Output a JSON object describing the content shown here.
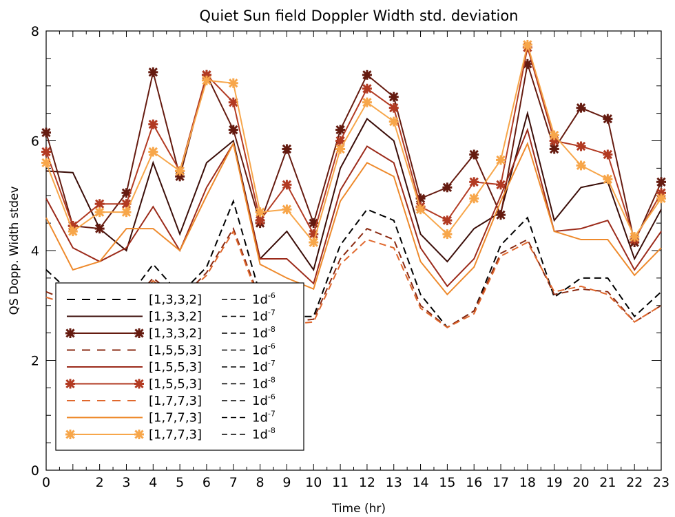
{
  "chart_data": {
    "type": "line",
    "title": "Quiet Sun field Doppler Width std. deviation",
    "xlabel": "Time (hr)",
    "ylabel": "QS Dopp. Width stdev",
    "xlim": [
      0,
      23
    ],
    "ylim": [
      0,
      8
    ],
    "x_ticks": [
      "0",
      "2",
      "3",
      "4",
      "5",
      "6",
      "7",
      "8",
      "9",
      "10",
      "11",
      "12",
      "13",
      "14",
      "15",
      "16",
      "17",
      "18",
      "19",
      "20",
      "21",
      "22",
      "23"
    ],
    "y_ticks": [
      "0",
      "2",
      "4",
      "6",
      "8"
    ],
    "grid": false,
    "legend_position": "bottom-left",
    "x": [
      0,
      1,
      2,
      3,
      4,
      5,
      6,
      7,
      8,
      9,
      10,
      11,
      12,
      13,
      14,
      15,
      16,
      17,
      18,
      19,
      20,
      21,
      22,
      23
    ],
    "series": [
      {
        "name": "[1,3,3,2] --- 1d-6",
        "label_main": "[1,3,3,2]",
        "tol_base": "1d",
        "tol_exp": "-6",
        "color": "#000000",
        "style": "dashed",
        "marker": "none",
        "values": [
          3.65,
          3.2,
          2.9,
          3.1,
          3.75,
          3.2,
          3.7,
          4.9,
          3.2,
          2.8,
          2.8,
          4.1,
          4.75,
          4.55,
          3.2,
          2.6,
          2.9,
          4.1,
          4.6,
          3.15,
          3.5,
          3.5,
          2.8,
          3.25
        ]
      },
      {
        "name": "[1,3,3,2] --- 1d-7",
        "label_main": "[1,3,3,2]",
        "tol_base": "1d",
        "tol_exp": "-7",
        "color": "#3a0d08",
        "style": "solid",
        "marker": "none",
        "values": [
          5.45,
          5.42,
          4.4,
          4.0,
          5.6,
          4.3,
          5.6,
          6.0,
          3.85,
          4.35,
          3.65,
          5.5,
          6.4,
          6.0,
          4.3,
          3.8,
          4.4,
          4.7,
          6.5,
          4.55,
          5.15,
          5.25,
          3.85,
          4.75
        ]
      },
      {
        "name": "[1,3,3,2] --- 1d-8",
        "label_main": "[1,3,3,2]",
        "tol_base": "1d",
        "tol_exp": "-8",
        "color": "#651b10",
        "style": "solid",
        "marker": "star",
        "values": [
          6.15,
          4.45,
          4.4,
          5.05,
          7.25,
          5.35,
          7.2,
          6.2,
          4.5,
          5.85,
          4.5,
          6.2,
          7.2,
          6.8,
          4.95,
          5.15,
          5.75,
          4.65,
          7.4,
          5.85,
          6.6,
          6.4,
          4.15,
          5.25
        ]
      },
      {
        "name": "[1,5,5,3] --- 1d-6",
        "label_main": "[1,5,5,3]",
        "tol_base": "1d",
        "tol_exp": "-6",
        "color": "#8a2a12",
        "style": "dashed",
        "marker": "none",
        "values": [
          3.25,
          3.05,
          2.75,
          2.95,
          3.5,
          3.1,
          3.6,
          4.4,
          3.1,
          2.7,
          2.75,
          3.85,
          4.4,
          4.2,
          3.0,
          2.6,
          2.9,
          3.95,
          4.2,
          3.2,
          3.3,
          3.25,
          2.7,
          3.0
        ]
      },
      {
        "name": "[1,5,5,3] --- 1d-7",
        "label_main": "[1,5,5,3]",
        "tol_base": "1d",
        "tol_exp": "-7",
        "color": "#9b2a1a",
        "style": "solid",
        "marker": "none",
        "values": [
          4.95,
          4.05,
          3.8,
          4.05,
          4.8,
          4.0,
          5.15,
          5.95,
          3.85,
          3.85,
          3.4,
          5.1,
          5.9,
          5.6,
          4.05,
          3.35,
          3.85,
          5.0,
          6.2,
          4.35,
          4.4,
          4.55,
          3.65,
          4.35
        ]
      },
      {
        "name": "[1,5,5,3] --- 1d-8",
        "label_main": "[1,5,5,3]",
        "tol_base": "1d",
        "tol_exp": "-8",
        "color": "#b23a22",
        "style": "solid",
        "marker": "star",
        "values": [
          5.8,
          4.45,
          4.85,
          4.85,
          6.3,
          5.45,
          7.2,
          6.7,
          4.55,
          5.2,
          4.3,
          6.0,
          6.95,
          6.6,
          4.8,
          4.55,
          5.25,
          5.2,
          7.7,
          6.0,
          5.9,
          5.75,
          4.2,
          5.05
        ]
      },
      {
        "name": "[1,7,7,3] --- 1d-6",
        "label_main": "[1,7,7,3]",
        "tol_base": "1d",
        "tol_exp": "-6",
        "color": "#e0682d",
        "style": "dashed",
        "marker": "none",
        "values": [
          3.15,
          3.0,
          2.8,
          2.9,
          3.45,
          3.1,
          3.55,
          4.35,
          3.05,
          2.65,
          2.7,
          3.75,
          4.2,
          4.05,
          2.95,
          2.6,
          2.85,
          3.9,
          4.15,
          3.25,
          3.35,
          3.2,
          2.7,
          3.0
        ]
      },
      {
        "name": "[1,7,7,3] --- 1d-7",
        "label_main": "[1,7,7,3]",
        "tol_base": "1d",
        "tol_exp": "-7",
        "color": "#ee8a2c",
        "style": "solid",
        "marker": "none",
        "values": [
          4.6,
          3.65,
          3.8,
          4.4,
          4.4,
          4.0,
          5.0,
          5.95,
          3.75,
          3.5,
          3.3,
          4.9,
          5.6,
          5.35,
          3.8,
          3.2,
          3.7,
          4.9,
          5.95,
          4.35,
          4.2,
          4.2,
          3.55,
          4.05
        ]
      },
      {
        "name": "[1,7,7,3] --- 1d-8",
        "label_main": "[1,7,7,3]",
        "tol_base": "1d",
        "tol_exp": "-8",
        "color": "#f7a64a",
        "style": "solid",
        "marker": "star",
        "values": [
          5.6,
          4.35,
          4.7,
          4.7,
          5.8,
          5.45,
          7.1,
          7.05,
          4.7,
          4.75,
          4.15,
          5.85,
          6.7,
          6.35,
          4.75,
          4.3,
          4.95,
          5.65,
          7.75,
          6.1,
          5.55,
          5.3,
          4.25,
          4.95
        ]
      }
    ]
  }
}
